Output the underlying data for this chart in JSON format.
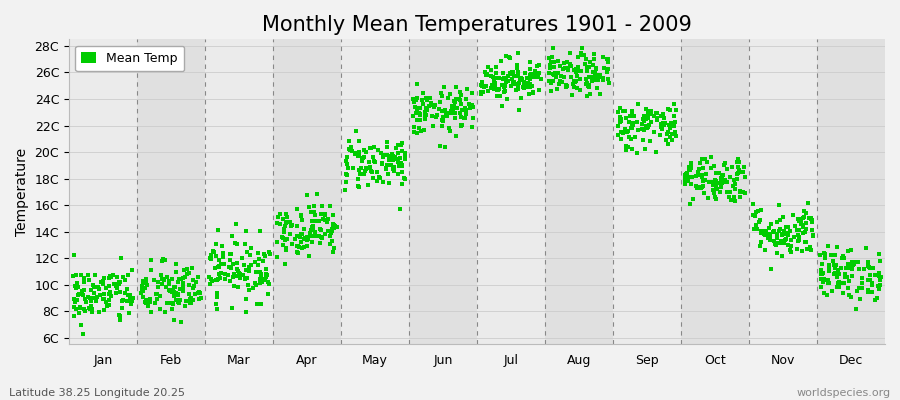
{
  "title": "Monthly Mean Temperatures 1901 - 2009",
  "ylabel": "Temperature",
  "xlabel_bottom_left": "Latitude 38.25 Longitude 20.25",
  "xlabel_bottom_right": "worldspecies.org",
  "legend_label": "Mean Temp",
  "marker_color": "#00CC00",
  "background_color": "#F2F2F2",
  "plot_bg_odd": "#EBEBEB",
  "plot_bg_even": "#E0E0E0",
  "ytick_labels": [
    "6C",
    "8C",
    "10C",
    "12C",
    "14C",
    "16C",
    "18C",
    "20C",
    "22C",
    "24C",
    "26C",
    "28C"
  ],
  "ytick_values": [
    6,
    8,
    10,
    12,
    14,
    16,
    18,
    20,
    22,
    24,
    26,
    28
  ],
  "month_names": [
    "Jan",
    "Feb",
    "Mar",
    "Apr",
    "May",
    "Jun",
    "Jul",
    "Aug",
    "Sep",
    "Oct",
    "Nov",
    "Dec"
  ],
  "monthly_means": [
    9.2,
    9.5,
    11.2,
    14.2,
    19.2,
    23.0,
    25.5,
    25.8,
    22.0,
    18.0,
    14.0,
    10.8
  ],
  "monthly_stds": [
    1.1,
    1.1,
    1.2,
    1.0,
    1.0,
    0.9,
    0.8,
    0.8,
    0.9,
    0.9,
    1.0,
    1.0
  ],
  "n_years": 109,
  "ylim": [
    5.5,
    28.5
  ],
  "xlim": [
    0,
    12
  ],
  "title_fontsize": 15,
  "axis_fontsize": 10,
  "tick_fontsize": 9,
  "marker_size": 3.5,
  "grid_color": "#CCCCCC",
  "dashed_line_color": "#888888",
  "spine_color": "#BBBBBB"
}
